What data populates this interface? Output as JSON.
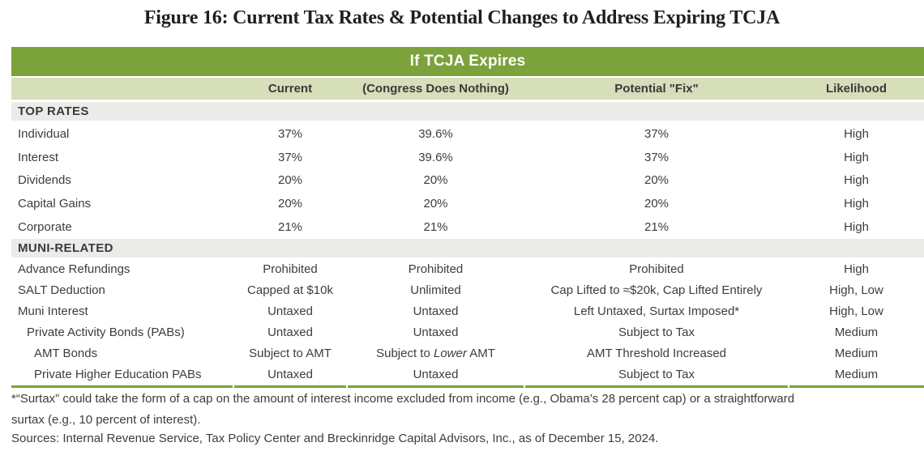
{
  "title": "Figure 16: Current Tax Rates & Potential Changes to Address Expiring TCJA",
  "colors": {
    "banner_green": "#7ba23b",
    "subheader_green": "#d6deba",
    "section_gray": "#ebebea",
    "body_text": "#3d3d3c"
  },
  "table": {
    "banner": "If TCJA Expires",
    "columns": {
      "current": "Current",
      "congress": "(Congress Does Nothing)",
      "fix": "Potential \"Fix\"",
      "likelihood": "Likelihood"
    },
    "sections": [
      {
        "header": "TOP RATES",
        "rows": [
          {
            "label": "Individual",
            "current": "37%",
            "congress": "39.6%",
            "fix": "37%",
            "likelihood": "High"
          },
          {
            "label": "Interest",
            "current": "37%",
            "congress": "39.6%",
            "fix": "37%",
            "likelihood": "High"
          },
          {
            "label": "Dividends",
            "current": "20%",
            "congress": "20%",
            "fix": "20%",
            "likelihood": "High"
          },
          {
            "label": "Capital Gains",
            "current": "20%",
            "congress": "20%",
            "fix": "20%",
            "likelihood": "High"
          },
          {
            "label": "Corporate",
            "current": "21%",
            "congress": "21%",
            "fix": "21%",
            "likelihood": "High"
          }
        ]
      },
      {
        "header": "MUNI-RELATED",
        "rows": [
          {
            "label": "Advance Refundings",
            "current": "Prohibited",
            "congress": "Prohibited",
            "fix": "Prohibited",
            "likelihood": "High"
          },
          {
            "label": "SALT Deduction",
            "current": "Capped at $10k",
            "congress": "Unlimited",
            "fix": "Cap Lifted to ≈$20k, Cap Lifted Entirely",
            "likelihood": "High, Low"
          },
          {
            "label": "Muni Interest",
            "current": "Untaxed",
            "congress": "Untaxed",
            "fix": "Left Untaxed, Surtax Imposed*",
            "likelihood": "High, Low"
          },
          {
            "label": "Private Activity Bonds (PABs)",
            "current": "Untaxed",
            "congress": "Untaxed",
            "fix": "Subject to Tax",
            "likelihood": "Medium"
          },
          {
            "label": "AMT Bonds",
            "current": "Subject to AMT",
            "congress_pre": "Subject to ",
            "congress_italic": "Lower",
            "congress_post": " AMT",
            "fix": "AMT Threshold Increased",
            "likelihood": "Medium"
          },
          {
            "label": "Private Higher Education PABs",
            "current": "Untaxed",
            "congress": "Untaxed",
            "fix": "Subject to Tax",
            "likelihood": "Medium"
          }
        ]
      }
    ]
  },
  "footnote": {
    "line1": "*“Surtax” could take the form of a cap on the amount of interest income excluded from income (e.g., Obama’s 28 percent cap) or a straightforward",
    "line2": "surtax (e.g., 10 percent of interest)."
  },
  "sources": "Sources: Internal Revenue Service, Tax Policy Center and Breckinridge Capital Advisors, Inc., as of December 15, 2024."
}
